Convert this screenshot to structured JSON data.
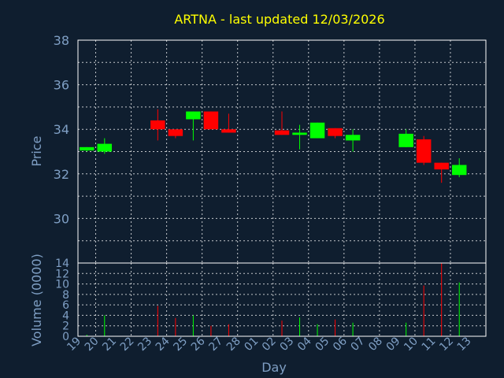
{
  "chart_data": [
    {
      "type": "candlestick",
      "title": "ARTNA - last updated 12/03/2026",
      "ylabel": "Price",
      "xlabel": "Day",
      "ylim": [
        28,
        38
      ],
      "yticks": [
        30,
        32,
        34,
        36,
        38
      ],
      "grid": true,
      "colors": {
        "up": "#00ff00",
        "down": "#ff0000",
        "wick_up": "#00ff00",
        "wick_down": "#ff0000"
      },
      "x_ticks": [
        "19",
        "20",
        "21",
        "22",
        "23",
        "24",
        "25",
        "26",
        "27",
        "28",
        "01",
        "02",
        "03",
        "04",
        "05",
        "06",
        "07",
        "08",
        "09",
        "10",
        "11",
        "12",
        "13"
      ],
      "candles": [
        {
          "day_index": 0,
          "open": 33.05,
          "high": 33.2,
          "low": 33.0,
          "close": 33.2
        },
        {
          "day_index": 1,
          "open": 33.0,
          "high": 33.6,
          "low": 32.9,
          "close": 33.35
        },
        {
          "day_index": 4,
          "open": 34.4,
          "high": 34.9,
          "low": 33.5,
          "close": 34.0
        },
        {
          "day_index": 5,
          "open": 34.0,
          "high": 34.0,
          "low": 33.6,
          "close": 33.7
        },
        {
          "day_index": 6,
          "open": 34.45,
          "high": 34.8,
          "low": 33.5,
          "close": 34.8
        },
        {
          "day_index": 7,
          "open": 34.8,
          "high": 34.8,
          "low": 34.0,
          "close": 34.0
        },
        {
          "day_index": 8,
          "open": 34.0,
          "high": 34.7,
          "low": 33.85,
          "close": 33.85
        },
        {
          "day_index": 11,
          "open": 33.95,
          "high": 34.8,
          "low": 33.75,
          "close": 33.75
        },
        {
          "day_index": 12,
          "open": 33.75,
          "high": 34.2,
          "low": 33.1,
          "close": 33.85
        },
        {
          "day_index": 13,
          "open": 33.6,
          "high": 34.3,
          "low": 33.6,
          "close": 34.3
        },
        {
          "day_index": 14,
          "open": 34.05,
          "high": 34.05,
          "low": 33.6,
          "close": 33.7
        },
        {
          "day_index": 15,
          "open": 33.5,
          "high": 34.0,
          "low": 33.0,
          "close": 33.75
        },
        {
          "day_index": 18,
          "open": 33.2,
          "high": 34.0,
          "low": 33.2,
          "close": 33.8
        },
        {
          "day_index": 19,
          "open": 33.55,
          "high": 33.7,
          "low": 32.4,
          "close": 32.5
        },
        {
          "day_index": 20,
          "open": 32.5,
          "high": 32.5,
          "low": 31.6,
          "close": 32.2
        },
        {
          "day_index": 21,
          "open": 31.95,
          "high": 32.7,
          "low": 31.85,
          "close": 32.4
        }
      ]
    },
    {
      "type": "bar",
      "ylabel": "Volume (0000)",
      "ylim": [
        0,
        14
      ],
      "yticks": [
        0,
        2,
        4,
        6,
        8,
        10,
        12,
        14
      ],
      "grid": true,
      "bars": [
        {
          "day_index": 0,
          "value": 0.3,
          "direction": "up"
        },
        {
          "day_index": 1,
          "value": 4.0,
          "direction": "up"
        },
        {
          "day_index": 4,
          "value": 5.8,
          "direction": "down"
        },
        {
          "day_index": 5,
          "value": 3.5,
          "direction": "down"
        },
        {
          "day_index": 6,
          "value": 4.0,
          "direction": "up"
        },
        {
          "day_index": 7,
          "value": 2.0,
          "direction": "down"
        },
        {
          "day_index": 8,
          "value": 2.3,
          "direction": "down"
        },
        {
          "day_index": 11,
          "value": 3.0,
          "direction": "down"
        },
        {
          "day_index": 12,
          "value": 3.6,
          "direction": "up"
        },
        {
          "day_index": 13,
          "value": 2.3,
          "direction": "up"
        },
        {
          "day_index": 14,
          "value": 3.2,
          "direction": "down"
        },
        {
          "day_index": 15,
          "value": 2.6,
          "direction": "up"
        },
        {
          "day_index": 18,
          "value": 2.6,
          "direction": "up"
        },
        {
          "day_index": 19,
          "value": 9.7,
          "direction": "down"
        },
        {
          "day_index": 20,
          "value": 14.0,
          "direction": "down"
        },
        {
          "day_index": 21,
          "value": 10.3,
          "direction": "up"
        }
      ]
    }
  ]
}
